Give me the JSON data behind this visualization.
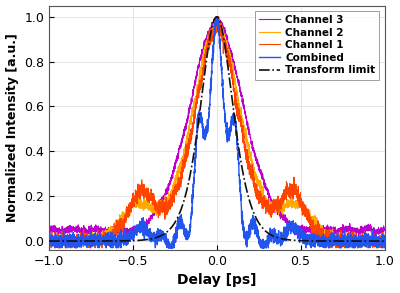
{
  "title": "",
  "xlabel": "Delay [ps]",
  "ylabel": "Normalized Intensity [a.u.]",
  "xlim": [
    -1,
    1
  ],
  "ylim": [
    -0.04,
    1.05
  ],
  "xticks": [
    -1,
    -0.5,
    0,
    0.5,
    1
  ],
  "yticks": [
    0,
    0.2,
    0.4,
    0.6,
    0.8,
    1
  ],
  "legend_entries": [
    "Transform limit",
    "Channel 1",
    "Channel 2",
    "Channel 3",
    "Combined"
  ],
  "colors": {
    "transform": "#111111",
    "ch1": "#FF4400",
    "ch2": "#FFAA00",
    "ch3": "#BB00CC",
    "combined": "#2255EE"
  },
  "background_color": "#ffffff",
  "grid_color": "#e0e0e0"
}
